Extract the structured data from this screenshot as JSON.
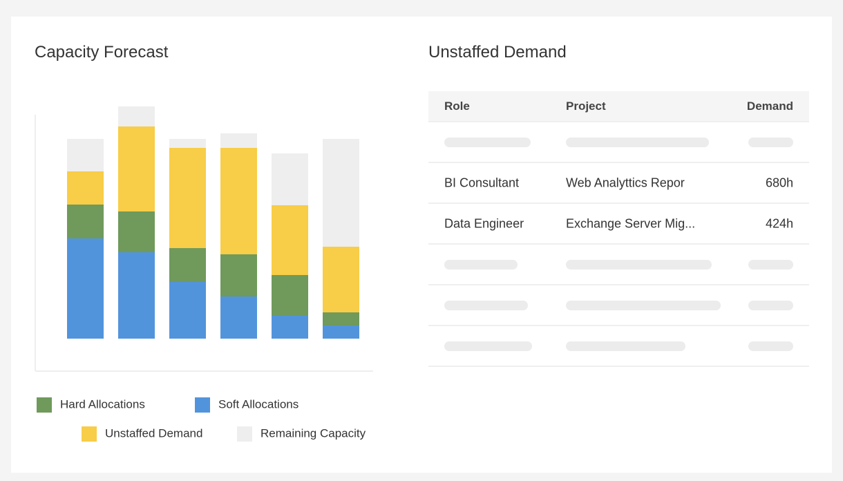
{
  "chart_data": {
    "type": "stacked-bar",
    "title": "Capacity Forecast",
    "ylim": [
      0,
      340
    ],
    "series": [
      {
        "name": "Hard Allocations",
        "color": "#6f9a5b",
        "values": [
          49,
          59,
          49,
          61,
          59,
          19
        ]
      },
      {
        "name": "Soft Allocations",
        "color": "#5294dc",
        "values": [
          145,
          125,
          82,
          61,
          33,
          19
        ]
      },
      {
        "name": "Unstaffed Demand",
        "color": "#f8cd47",
        "values": [
          48,
          123,
          145,
          154,
          101,
          95
        ]
      },
      {
        "name": "Remaining Capacity",
        "color": "#eeeeee",
        "values": [
          47,
          29,
          13,
          21,
          75,
          156
        ]
      }
    ]
  },
  "table": {
    "title": "Unstaffed Demand",
    "columns": [
      "Role",
      "Project",
      "Demand"
    ],
    "rows": [
      [
        "BI Consultant",
        "Web Analyttics Repor",
        "680h"
      ],
      [
        "Data Engineer",
        "Exchange Server Mig...",
        "424h"
      ]
    ]
  }
}
